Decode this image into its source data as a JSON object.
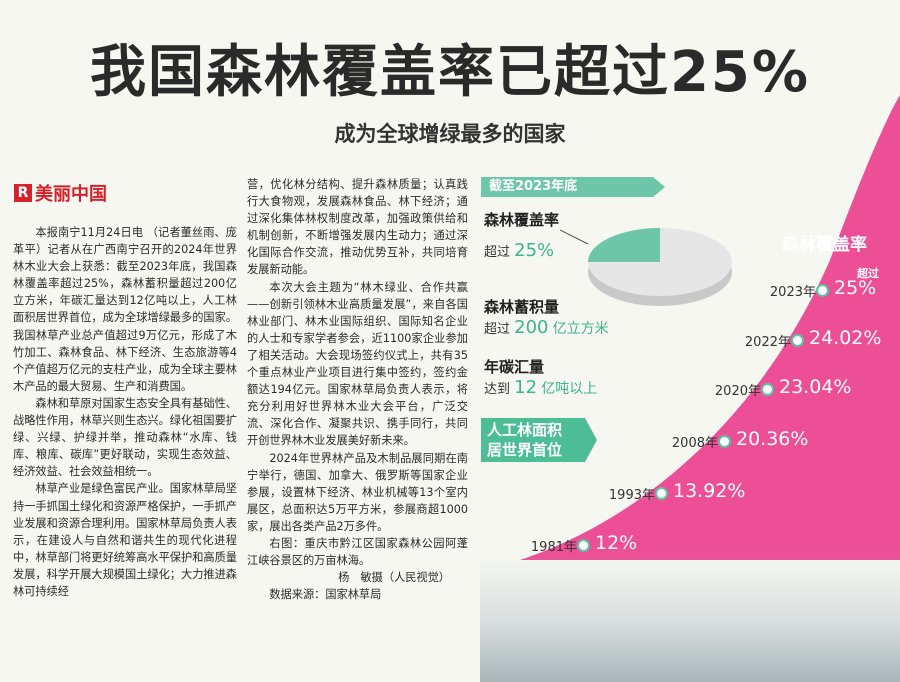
{
  "headline": "我国森林覆盖率已超过25%",
  "subheadline": "成为全球增绿最多的国家",
  "column": {
    "name": "美丽中国",
    "logo_letter": "R"
  },
  "article": {
    "col1": [
      "本报南宁11月24日电 （记者董丝雨、庞革平）记者从在广西南宁召开的2024年世界林木业大会上获悉：截至2023年底，我国森林覆盖率超过25%，森林蓄积量超过200亿立方米，年碳汇量达到12亿吨以上，人工林面积居世界首位，成为全球增绿最多的国家。我国林草产业总产值超过9万亿元，形成了木竹加工、森林食品、林下经济、生态旅游等4个产值超万亿元的支柱产业，成为全球主要林木产品的最大贸易、生产和消费国。",
      "森林和草原对国家生态安全具有基础性、战略性作用，林草兴则生态兴。绿化祖国要扩绿、兴绿、护绿并举，推动森林“水库、钱库、粮库、碳库”更好联动，实现生态效益、经济效益、社会效益相统一。",
      "林草产业是绿色富民产业。国家林草局坚持一手抓国土绿化和资源严格保护，一手抓产业发展和资源合理利用。国家林草局负责人表示，在建设人与自然和谐共生的现代化进程中，林草部门将更好统筹高水平保护和高质量发展，科学开展大规模国土绿化；大力推进森林可持续经"
    ],
    "col2_cont": "营，优化林分结构、提升森林质量；认真践行大食物观，发展森林食品、林下经济；通过深化集体林权制度改革，加强政策供给和机制创新，不断增强发展内生动力；通过深化国际合作交流，推动优势互补，共同培育发展新动能。",
    "col2": [
      "本次大会主题为“林木绿业、合作共赢——创新引领林木业高质量发展”，来自各国林业部门、林木业国际组织、国际知名企业的人士和专家学者参会，近1100家企业参加了相关活动。大会现场签约仪式上，共有35个重点林业产业项目进行集中签约，签约金额达194亿元。国家林草局负责人表示，将充分利用好世界林木业大会平台，广泛交流、深化合作、凝聚共识、携手同行，共同开创世界林木业发展美好新未来。",
      "2024年世界林产品及木制品展同期在南宁举行，德国、加拿大、俄罗斯等国家企业参展，设置林下经济、林业机械等13个室内展区，总面积达5万平方米，参展商超1000家，展出各类产品2万多件。"
    ],
    "caption": "右图：重庆市黔江区国家森林公园阿蓬江峡谷景区的万亩林海。",
    "byline": "杨　敏摄（人民视觉）",
    "source": "数据来源：国家林草局"
  },
  "info": {
    "banner": "截至2023年底",
    "stats": [
      {
        "label": "森林覆盖率",
        "prefix": "超过",
        "number": "25%",
        "unit": ""
      },
      {
        "label": "森林蓄积量",
        "prefix": "超过",
        "number": "200",
        "unit": "亿立方米"
      },
      {
        "label": "年碳汇量",
        "prefix": "达到",
        "number": "12",
        "unit": "亿吨以上"
      }
    ],
    "green_banner_line1": "人工林面积",
    "green_banner_line2": "居世界首位",
    "pie_fraction": 0.25
  },
  "chart_data": {
    "type": "line",
    "title": "森林覆盖率",
    "annotation": "超过",
    "x": [
      "1981年",
      "1993年",
      "2008年",
      "2020年",
      "2022年",
      "2023年"
    ],
    "values": [
      "12%",
      "13.92%",
      "20.36%",
      "23.04%",
      "24.02%",
      "25%"
    ],
    "colors": {
      "pink": "#ec4f95",
      "green": "#5dc39f",
      "pie_gray": "#e4e4e4"
    }
  }
}
